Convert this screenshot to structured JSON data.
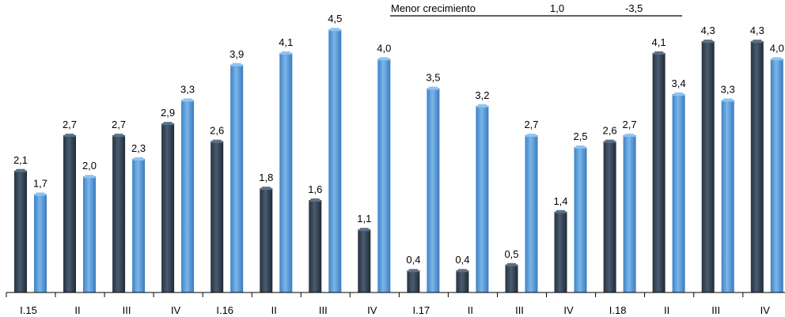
{
  "chart_data": {
    "type": "bar",
    "categories": [
      "I.15",
      "II",
      "III",
      "IV",
      "I.16",
      "II",
      "III",
      "IV",
      "I.17",
      "II",
      "III",
      "IV",
      "I.18",
      "II",
      "III",
      "IV"
    ],
    "series": [
      {
        "values": [
          2.1,
          2.7,
          2.7,
          2.9,
          2.6,
          1.8,
          1.6,
          1.1,
          0.4,
          0.4,
          0.5,
          1.4,
          2.6,
          4.1,
          4.3,
          4.3
        ],
        "color": "#2f3e50"
      },
      {
        "values": [
          1.7,
          2.0,
          2.3,
          3.3,
          3.9,
          4.1,
          4.5,
          4.0,
          3.5,
          3.2,
          2.7,
          2.5,
          2.7,
          3.4,
          3.3,
          4.0
        ],
        "color": "#5b9bd5"
      }
    ],
    "value_labels": {
      "series0": [
        "2,1",
        "2,7",
        "2,7",
        "2,9",
        "2,6",
        "1,8",
        "1,6",
        "1,1",
        "0,4",
        "0,4",
        "0,5",
        "1,4",
        "2,6",
        "4,1",
        "4,3",
        "4,3"
      ],
      "series1": [
        "1,7",
        "2,0",
        "2,3",
        "3,3",
        "3,9",
        "4,1",
        "4,5",
        "4,0",
        "3,5",
        "3,2",
        "2,7",
        "2,5",
        "2,7",
        "3,4",
        "3,3",
        "4,0"
      ]
    },
    "ylim": [
      0,
      4.7
    ],
    "grid": false,
    "annotation": {
      "text": "Menor crecimiento",
      "value1": "1,0",
      "value2": "-3,5"
    }
  }
}
